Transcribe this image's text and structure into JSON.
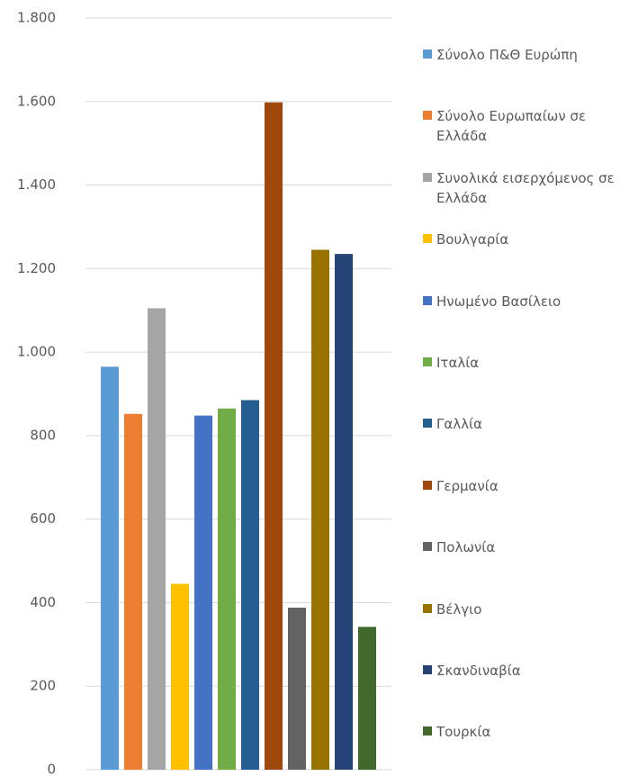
{
  "chart_data": {
    "type": "bar",
    "categories": [
      null
    ],
    "series": [
      {
        "name": "Σύνολο Π&Θ Ευρώπη",
        "color": "#5b9bd5",
        "values": [
          965
        ]
      },
      {
        "name": "Σύνολο Ευρωπαίων σε Ελλάδα",
        "color": "#ed7d31",
        "values": [
          852
        ]
      },
      {
        "name": "Συνολικά εισερχόμενος σε Ελλάδα",
        "color": "#a5a5a5",
        "values": [
          1105
        ]
      },
      {
        "name": "Βουλγαρία",
        "color": "#ffc000",
        "values": [
          445
        ]
      },
      {
        "name": "Ηνωμένο Βασίλειο",
        "color": "#4472c4",
        "values": [
          848
        ]
      },
      {
        "name": "Ιταλία",
        "color": "#70ad47",
        "values": [
          865
        ]
      },
      {
        "name": "Γαλλία",
        "color": "#255e91",
        "values": [
          885
        ]
      },
      {
        "name": "Γερμανία",
        "color": "#9e480e",
        "values": [
          1598
        ]
      },
      {
        "name": "Πολωνία",
        "color": "#636363",
        "values": [
          388
        ]
      },
      {
        "name": "Βέλγιο",
        "color": "#997300",
        "values": [
          1245
        ]
      },
      {
        "name": "Σκανδιναβία",
        "color": "#264478",
        "values": [
          1235
        ]
      },
      {
        "name": "Τουρκία",
        "color": "#43682b",
        "values": [
          342
        ]
      }
    ],
    "ylim": [
      0,
      1800
    ],
    "yticks": [
      0,
      200,
      400,
      600,
      800,
      {
        "value": 1000,
        "label": "1.000"
      },
      {
        "value": 1200,
        "label": "1.200"
      },
      {
        "value": 1400,
        "label": "1.400"
      },
      {
        "value": 1600,
        "label": "1.600"
      },
      {
        "value": 1800,
        "label": "1.800"
      }
    ],
    "grid": true,
    "legend": "right"
  }
}
